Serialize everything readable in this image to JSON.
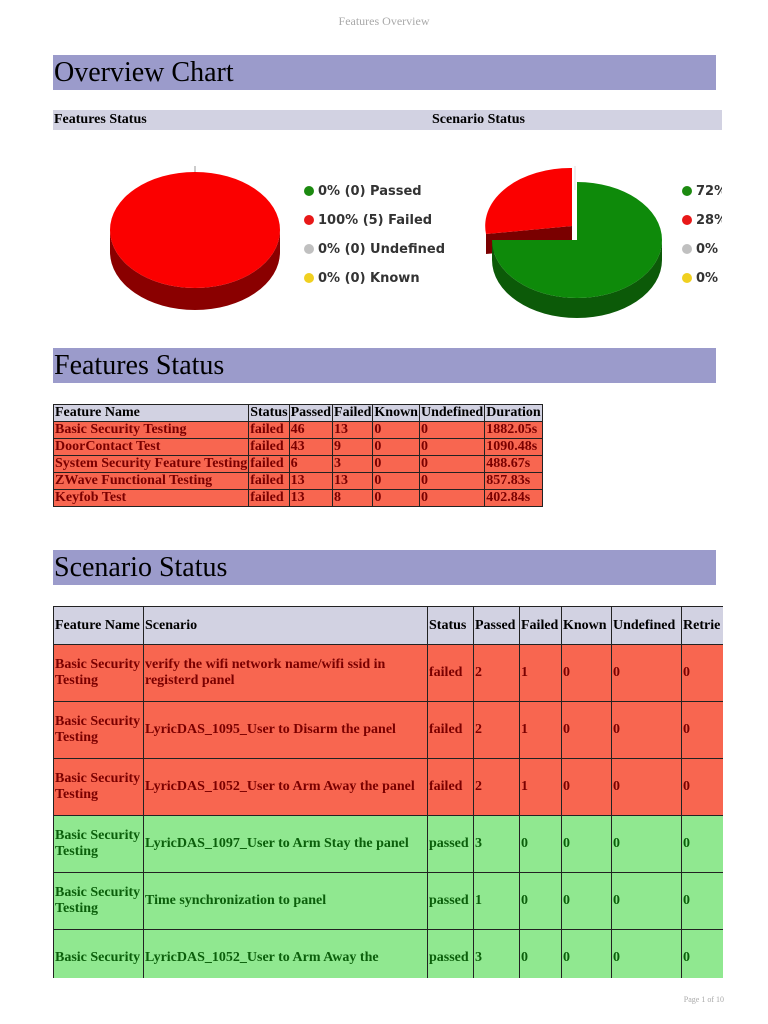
{
  "header": {
    "title": "Features Overview"
  },
  "footer": {
    "page": "Page 1 of 10"
  },
  "overview": {
    "title": "Overview Chart",
    "features_label": "Features Status",
    "scenario_label": "Scenario Status"
  },
  "colors": {
    "passed": "#2a8a1a",
    "failed": "#e81818",
    "undefined": "#c0c0c0",
    "known": "#f0d020"
  },
  "legend_features": [
    {
      "label": "0% (0) Passed",
      "icon": "green-dot"
    },
    {
      "label": "100% (5) Failed",
      "icon": "red-dot"
    },
    {
      "label": "0% (0) Undefined",
      "icon": "gray-dot"
    },
    {
      "label": "0% (0) Known",
      "icon": "yellow-dot"
    }
  ],
  "legend_scenarios": [
    {
      "label": "72%",
      "icon": "green-dot"
    },
    {
      "label": "28%",
      "icon": "red-dot"
    },
    {
      "label": "0% (",
      "icon": "gray-dot"
    },
    {
      "label": "0% (",
      "icon": "yellow-dot"
    }
  ],
  "chart_data": [
    {
      "type": "pie",
      "categories": [
        "Passed",
        "Failed",
        "Undefined",
        "Known"
      ],
      "values": [
        0,
        100,
        0,
        0
      ]
    },
    {
      "type": "pie",
      "categories": [
        "Passed",
        "Failed",
        "Undefined",
        "Known"
      ],
      "values": [
        72,
        28,
        0,
        0
      ]
    }
  ],
  "features_status": {
    "title": "Features Status",
    "columns": [
      "Feature Name",
      "Status",
      "Passed",
      "Failed",
      "Known",
      "Undefined",
      "Duration"
    ],
    "rows": [
      [
        "Basic Security Testing",
        "failed",
        "46",
        "13",
        "0",
        "0",
        "1882.05s"
      ],
      [
        "DoorContact Test",
        "failed",
        "43",
        "9",
        "0",
        "0",
        "1090.48s"
      ],
      [
        "System Security Feature Testing",
        "failed",
        "6",
        "3",
        "0",
        "0",
        "488.67s"
      ],
      [
        "ZWave Functional Testing",
        "failed",
        "13",
        "13",
        "0",
        "0",
        "857.83s"
      ],
      [
        "Keyfob Test",
        "failed",
        "13",
        "8",
        "0",
        "0",
        "402.84s"
      ]
    ]
  },
  "scenario_status": {
    "title": "Scenario Status",
    "columns": [
      "Feature Name",
      "Scenario",
      "Status",
      "Passed",
      "Failed",
      "Known",
      "Undefined",
      "Retrie"
    ],
    "rows": [
      [
        "Basic Security Testing",
        "verify the wifi network name/wifi ssid in registerd panel",
        "failed",
        "2",
        "1",
        "0",
        "0",
        "0"
      ],
      [
        "Basic Security Testing",
        "LyricDAS_1095_User to Disarm the panel",
        "failed",
        "2",
        "1",
        "0",
        "0",
        "0"
      ],
      [
        "Basic Security Testing",
        "LyricDAS_1052_User to Arm Away the panel",
        "failed",
        "2",
        "1",
        "0",
        "0",
        "0"
      ],
      [
        "Basic Security Testing",
        "LyricDAS_1097_User to Arm Stay the panel",
        "passed",
        "3",
        "0",
        "0",
        "0",
        "0"
      ],
      [
        "Basic Security Testing",
        "Time synchronization to panel",
        "passed",
        "1",
        "0",
        "0",
        "0",
        "0"
      ],
      [
        "Basic Security",
        "LyricDAS_1052_User to Arm Away the",
        "passed",
        "3",
        "0",
        "0",
        "0",
        "0"
      ]
    ]
  }
}
